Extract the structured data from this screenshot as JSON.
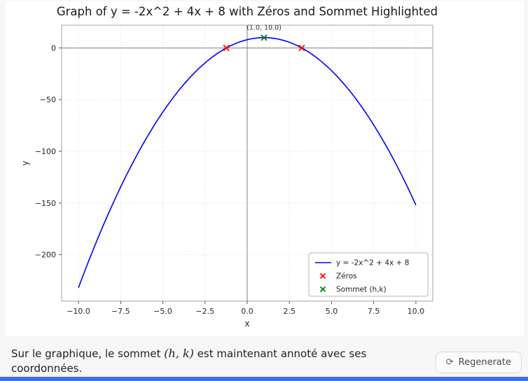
{
  "chart_data": {
    "type": "line",
    "title": "Graph of y = -2x^2 + 4x + 8 with Zéros and Sommet Highlighted",
    "xlabel": "x",
    "ylabel": "y",
    "xlim": [
      -11,
      11
    ],
    "ylim": [
      -245,
      22
    ],
    "x_ticks": [
      -10.0,
      -7.5,
      -5.0,
      -2.5,
      0.0,
      2.5,
      5.0,
      7.5,
      10.0
    ],
    "y_ticks": [
      0,
      -50,
      -100,
      -150,
      -200
    ],
    "grid": true,
    "legend_position": "lower right",
    "function": {
      "a": -2,
      "b": 4,
      "c": 8,
      "x_min": -10,
      "x_max": 10
    },
    "series": [
      {
        "name": "y = -2x^2 + 4x + 8",
        "type": "line",
        "color": "#0000ff"
      },
      {
        "name": "Zéros",
        "type": "marker-x",
        "color": "#ff0000",
        "points": [
          [
            -1.236,
            0
          ],
          [
            3.236,
            0
          ]
        ]
      },
      {
        "name": "Sommet (h,k)",
        "type": "marker-x",
        "color": "#008000",
        "points": [
          [
            1.0,
            10.0
          ]
        ]
      }
    ],
    "annotation": {
      "text": "(1.0, 10.0)",
      "x": 1.0,
      "y": 10.0
    },
    "colors": {
      "grid": "#cccccc",
      "spine": "#a3a3a3",
      "axis_line": "#808080",
      "tick_label": "#262626",
      "title": "#1a1a1a",
      "legend_border": "#b5b5b5"
    }
  },
  "caption": {
    "text_before_math": "Sur le graphique, le sommet ",
    "math": "(h, k)",
    "text_after_math": " est maintenant annoté avec ses coordonnées."
  },
  "regenerate_button": {
    "label": "Regenerate",
    "icon": "refresh"
  }
}
